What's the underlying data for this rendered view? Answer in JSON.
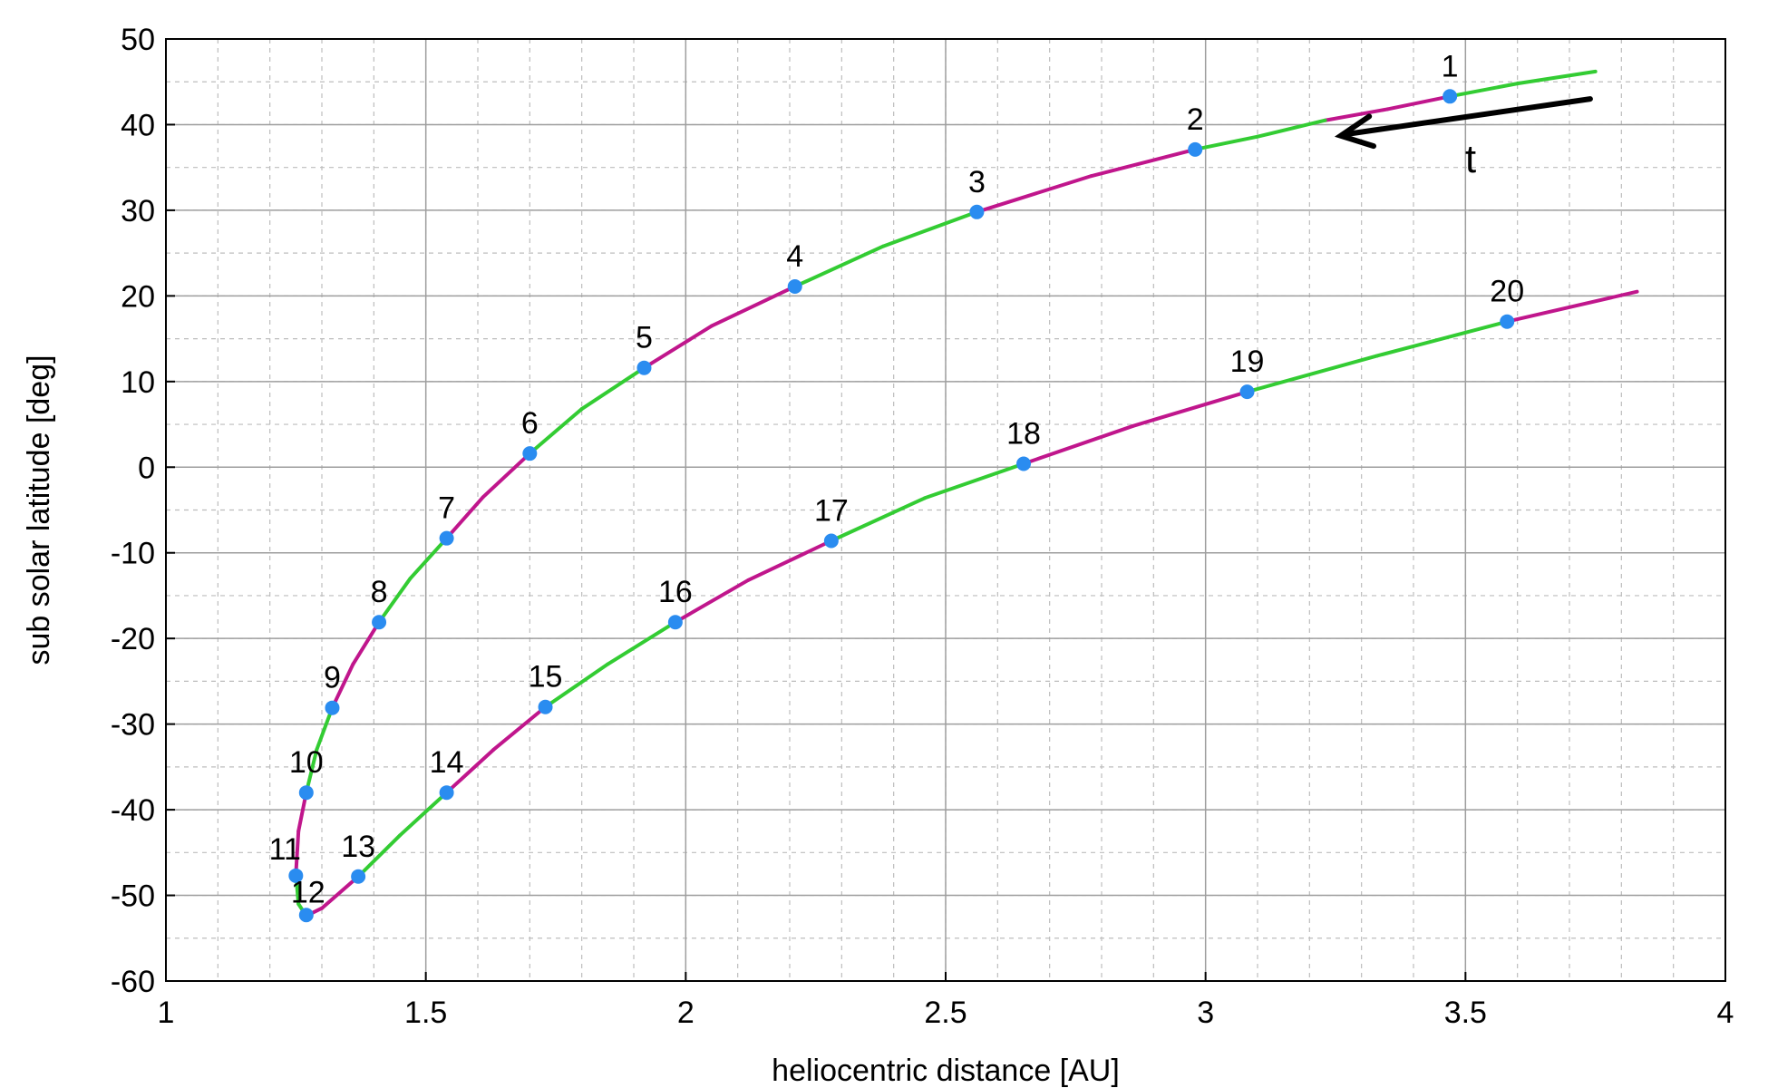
{
  "chart_data": {
    "type": "line",
    "xlabel": "heliocentric distance [AU]",
    "ylabel": "sub solar latitude [deg]",
    "xlim": [
      1,
      4
    ],
    "ylim": [
      -60,
      50
    ],
    "xticks": [
      1,
      1.5,
      2,
      2.5,
      3,
      3.5,
      4
    ],
    "xtick_labels": [
      "1",
      "1.5",
      "2",
      "2.5",
      "3",
      "3.5",
      "4"
    ],
    "yticks": [
      -60,
      -50,
      -40,
      -30,
      -20,
      -10,
      0,
      10,
      20,
      30,
      40,
      50
    ],
    "ytick_labels": [
      "-60",
      "-50",
      "-40",
      "-30",
      "-20",
      "-10",
      "0",
      "10",
      "20",
      "30",
      "40",
      "50"
    ],
    "grid": true,
    "minor_grid": true,
    "segment_colors": [
      "#33cc33",
      "#c0168c"
    ],
    "point_color": "#2a8cf0",
    "trajectory": [
      [
        3.75,
        46.2
      ],
      [
        3.6,
        44.8
      ],
      [
        3.47,
        43.3
      ],
      [
        3.35,
        41.8
      ],
      [
        3.23,
        40.5
      ],
      [
        3.1,
        38.6
      ],
      [
        2.98,
        37.1
      ],
      [
        2.78,
        34.0
      ],
      [
        2.56,
        29.8
      ],
      [
        2.38,
        25.8
      ],
      [
        2.21,
        21.1
      ],
      [
        2.05,
        16.5
      ],
      [
        1.92,
        11.6
      ],
      [
        1.8,
        6.8
      ],
      [
        1.7,
        1.6
      ],
      [
        1.61,
        -3.5
      ],
      [
        1.54,
        -8.3
      ],
      [
        1.47,
        -13.0
      ],
      [
        1.41,
        -18.1
      ],
      [
        1.36,
        -23.0
      ],
      [
        1.32,
        -28.1
      ],
      [
        1.29,
        -33.0
      ],
      [
        1.27,
        -38.0
      ],
      [
        1.255,
        -42.5
      ],
      [
        1.25,
        -47.5
      ],
      [
        1.255,
        -51.0
      ],
      [
        1.27,
        -52.4
      ],
      [
        1.3,
        -51.5
      ],
      [
        1.37,
        -47.8
      ],
      [
        1.45,
        -43.0
      ],
      [
        1.54,
        -38.0
      ],
      [
        1.63,
        -33.0
      ],
      [
        1.73,
        -28.0
      ],
      [
        1.85,
        -23.0
      ],
      [
        1.98,
        -18.1
      ],
      [
        2.12,
        -13.2
      ],
      [
        2.28,
        -8.6
      ],
      [
        2.46,
        -3.6
      ],
      [
        2.65,
        0.4
      ],
      [
        2.86,
        4.8
      ],
      [
        3.08,
        8.8
      ],
      [
        3.33,
        13.0
      ],
      [
        3.58,
        17.0
      ],
      [
        3.83,
        20.5
      ]
    ],
    "points": [
      {
        "label": "1",
        "x": 3.47,
        "y": 43.3
      },
      {
        "label": "2",
        "x": 2.98,
        "y": 37.1
      },
      {
        "label": "3",
        "x": 2.56,
        "y": 29.8
      },
      {
        "label": "4",
        "x": 2.21,
        "y": 21.1
      },
      {
        "label": "5",
        "x": 1.92,
        "y": 11.6
      },
      {
        "label": "6",
        "x": 1.7,
        "y": 1.6
      },
      {
        "label": "7",
        "x": 1.54,
        "y": -8.3
      },
      {
        "label": "8",
        "x": 1.41,
        "y": -18.1
      },
      {
        "label": "9",
        "x": 1.32,
        "y": -28.1
      },
      {
        "label": "10",
        "x": 1.27,
        "y": -38.0
      },
      {
        "label": "11",
        "x": 1.25,
        "y": -47.7
      },
      {
        "label": "12",
        "x": 1.27,
        "y": -52.3
      },
      {
        "label": "13",
        "x": 1.37,
        "y": -47.8
      },
      {
        "label": "14",
        "x": 1.54,
        "y": -38.0
      },
      {
        "label": "15",
        "x": 1.73,
        "y": -28.0
      },
      {
        "label": "16",
        "x": 1.98,
        "y": -18.1
      },
      {
        "label": "17",
        "x": 2.28,
        "y": -8.6
      },
      {
        "label": "18",
        "x": 2.65,
        "y": 0.4
      },
      {
        "label": "19",
        "x": 3.08,
        "y": 8.8
      },
      {
        "label": "20",
        "x": 3.58,
        "y": 17.0
      }
    ],
    "arrow": {
      "label": "t",
      "from": [
        3.74,
        43.0
      ],
      "to": [
        3.26,
        38.7
      ]
    }
  }
}
